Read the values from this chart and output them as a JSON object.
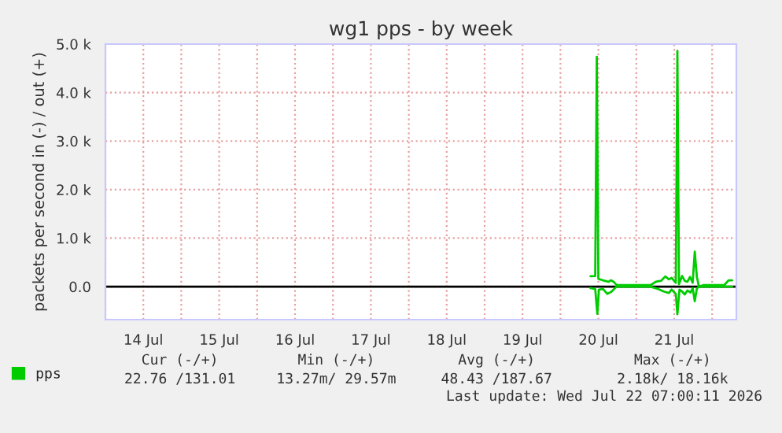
{
  "chart_data": {
    "type": "line",
    "title": "wg1 pps - by week",
    "ylabel": "packets per second in (-) / out (+)",
    "series": [
      {
        "name": "pps",
        "color": "#00cc00",
        "x": [
          "2026-07-20T09:30",
          "2026-07-20T11:00",
          "2026-07-20T11:40",
          "2026-07-20T12:10",
          "2026-07-20T13:30",
          "2026-07-20T14:50",
          "2026-07-20T16:00",
          "2026-07-20T16:50",
          "2026-07-20T17:40",
          "2026-07-21T04:30",
          "2026-07-21T07:00",
          "2026-07-21T08:40",
          "2026-07-21T10:20",
          "2026-07-21T11:10",
          "2026-07-21T12:30",
          "2026-07-21T13:00",
          "2026-07-21T13:40",
          "2026-07-21T14:30",
          "2026-07-21T15:20",
          "2026-07-21T16:10",
          "2026-07-21T17:10",
          "2026-07-21T17:50",
          "2026-07-21T18:30",
          "2026-07-21T19:10",
          "2026-07-21T19:50",
          "2026-07-22T03:50",
          "2026-07-22T05:10",
          "2026-07-22T06:20"
        ],
        "values": [
          -30,
          -50,
          -560,
          -60,
          -50,
          -150,
          -110,
          -60,
          0,
          0,
          -50,
          -100,
          -130,
          -60,
          -150,
          -570,
          -60,
          -100,
          -160,
          -80,
          -120,
          -30,
          -300,
          -40,
          0,
          0,
          0,
          0
        ]
      },
      {
        "color": "#00cc00",
        "x": [
          "2026-07-20T09:30",
          "2026-07-20T11:00",
          "2026-07-20T11:30",
          "2026-07-20T12:00",
          "2026-07-20T13:30",
          "2026-07-20T15:10",
          "2026-07-20T16:00",
          "2026-07-20T16:50",
          "2026-07-20T17:40",
          "2026-07-20T18:30",
          "2026-07-20T21:50",
          "2026-07-21T04:30",
          "2026-07-21T06:10",
          "2026-07-21T07:50",
          "2026-07-21T09:10",
          "2026-07-21T10:20",
          "2026-07-21T11:10",
          "2026-07-21T12:00",
          "2026-07-21T12:30",
          "2026-07-21T13:00",
          "2026-07-21T13:30",
          "2026-07-21T14:30",
          "2026-07-21T15:20",
          "2026-07-21T16:10",
          "2026-07-21T17:00",
          "2026-07-21T17:50",
          "2026-07-21T18:30",
          "2026-07-21T19:10",
          "2026-07-21T19:50",
          "2026-07-21T21:10",
          "2026-07-22T03:50",
          "2026-07-22T05:10",
          "2026-07-22T06:20"
        ],
        "values": [
          216,
          220,
          4740,
          160,
          130,
          100,
          130,
          100,
          40,
          30,
          30,
          30,
          100,
          120,
          210,
          150,
          180,
          120,
          80,
          4860,
          50,
          220,
          120,
          100,
          200,
          80,
          720,
          200,
          0,
          30,
          30,
          130,
          130
        ]
      }
    ],
    "xlim": [
      "2026-07-14T00:00",
      "2026-07-22T07:40"
    ],
    "xticks": [
      {
        "value": "2026-07-14T00:00",
        "label": null
      },
      {
        "value": "2026-07-14T12:00",
        "label": "14 Jul"
      },
      {
        "value": "2026-07-15T00:00",
        "label": null
      },
      {
        "value": "2026-07-15T12:00",
        "label": "15 Jul"
      },
      {
        "value": "2026-07-16T00:00",
        "label": null
      },
      {
        "value": "2026-07-16T12:00",
        "label": "16 Jul"
      },
      {
        "value": "2026-07-17T00:00",
        "label": null
      },
      {
        "value": "2026-07-17T12:00",
        "label": "17 Jul"
      },
      {
        "value": "2026-07-18T00:00",
        "label": null
      },
      {
        "value": "2026-07-18T12:00",
        "label": "18 Jul"
      },
      {
        "value": "2026-07-19T00:00",
        "label": null
      },
      {
        "value": "2026-07-19T12:00",
        "label": "19 Jul"
      },
      {
        "value": "2026-07-20T00:00",
        "label": null
      },
      {
        "value": "2026-07-20T12:00",
        "label": "20 Jul"
      },
      {
        "value": "2026-07-21T00:00",
        "label": null
      },
      {
        "value": "2026-07-21T12:00",
        "label": "21 Jul"
      },
      {
        "value": "2026-07-22T00:00",
        "label": null
      }
    ],
    "ylim": [
      -680,
      5000
    ],
    "yticks": [
      {
        "value": 0,
        "label": "0.0"
      },
      {
        "value": 1000,
        "label": "1.0 k"
      },
      {
        "value": 2000,
        "label": "2.0 k"
      },
      {
        "value": 3000,
        "label": "3.0 k"
      },
      {
        "value": 4000,
        "label": "4.0 k"
      },
      {
        "value": 5000,
        "label": "5.0 k"
      }
    ],
    "ref_lines": [
      {
        "axis": "y",
        "value": 0,
        "color": "#000000"
      }
    ],
    "grid": true,
    "legend": "bottom",
    "marker": "none",
    "line_style": "solid",
    "annotations": [
      "Cur (-/+)",
      "Min (-/+)",
      "Avg (-/+)",
      "Max (-/+)",
      "22.76 /131.01",
      "13.27m/ 29.57m",
      "48.43 /187.67",
      "2.18k/ 18.16k",
      "Last update: Wed Jul 22 07:00:11 2026"
    ]
  }
}
